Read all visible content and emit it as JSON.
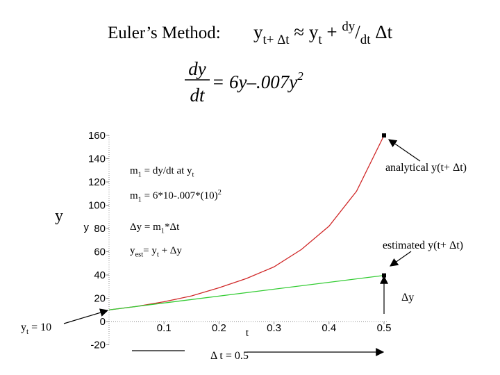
{
  "title": "Euler’s Method:",
  "formula": [
    {
      "t": "y"
    },
    {
      "sub": "t+ Δt"
    },
    {
      "t": " ≈ y"
    },
    {
      "sub": "t"
    },
    {
      "t": " + "
    },
    {
      "sup": "dy"
    },
    {
      "t": "/"
    },
    {
      "sub": "dt"
    },
    {
      "t": " Δt"
    }
  ],
  "equation": {
    "numerator": "dy",
    "denominator": "dt",
    "rhs": "= 6y–.007y",
    "rhs_sup": "2"
  },
  "chart_data": {
    "type": "line",
    "xlabel": "t",
    "ylabel": "y",
    "xlim": [
      0,
      0.5
    ],
    "ylim": [
      -20,
      160
    ],
    "xticks": [
      0.1,
      0.2,
      0.3,
      0.4,
      0.5
    ],
    "yticks": [
      -20,
      0,
      20,
      40,
      60,
      80,
      100,
      120,
      140,
      160
    ],
    "series": [
      {
        "color": "#d02828",
        "x": [
          0,
          0.05,
          0.1,
          0.15,
          0.2,
          0.25,
          0.3,
          0.35,
          0.4,
          0.45,
          0.5
        ],
        "values": [
          10,
          13,
          17,
          22,
          29,
          37,
          47,
          62,
          82,
          112,
          160
        ]
      },
      {
        "color": "#33cc33",
        "x": [
          0,
          0.5
        ],
        "values": [
          10,
          39.65
        ]
      }
    ],
    "annotations": [
      [
        {
          "t": "m"
        },
        {
          "sub": "1"
        },
        {
          "t": " = dy/dt at y"
        },
        {
          "sub": "t"
        }
      ],
      [
        {
          "t": "m"
        },
        {
          "sub": "1"
        },
        {
          "t": " = 6*10-.007*(10)"
        },
        {
          "sup": "2"
        }
      ],
      [
        {
          "t": "Δy = m"
        },
        {
          "sub": "1"
        },
        {
          "t": "*Δt"
        }
      ],
      [
        {
          "t": "y"
        },
        {
          "sub": "est"
        },
        {
          "t": "= y"
        },
        {
          "sub": "t"
        },
        {
          "t": " + Δy"
        }
      ],
      [
        {
          "t": "analytical y(t+ Δt)"
        }
      ],
      [
        {
          "t": "estimated y(t+ Δt)"
        }
      ],
      [
        {
          "t": "Δy"
        }
      ],
      [
        {
          "t": "y"
        },
        {
          "sub": "t"
        },
        {
          "t": " = 10"
        }
      ],
      [
        {
          "t": "Δ t = 0.5"
        }
      ],
      [
        {
          "t": "y"
        }
      ]
    ]
  }
}
